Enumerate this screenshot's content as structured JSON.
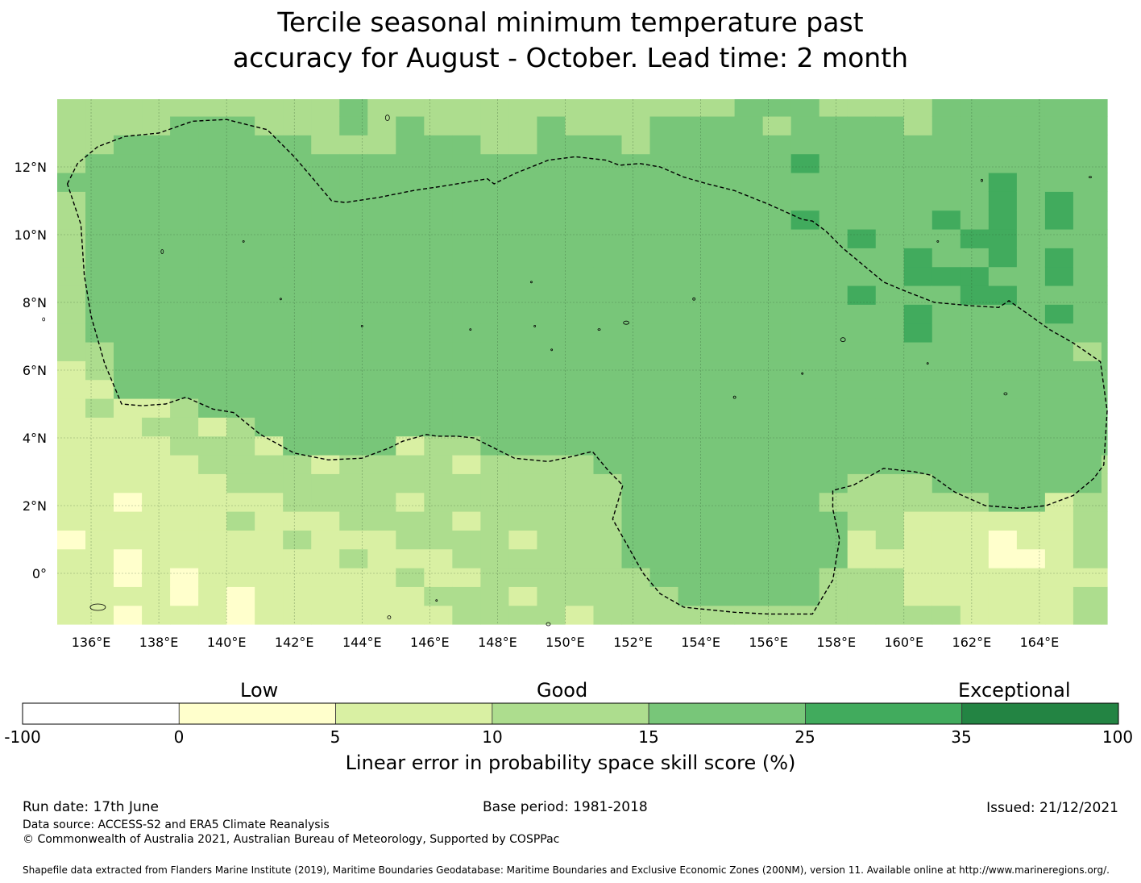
{
  "title": {
    "line1": "Tercile seasonal minimum temperature past",
    "line2": "accuracy for August - October. Lead time: 2 month"
  },
  "map": {
    "lon_range": [
      135,
      166
    ],
    "lat_range": [
      -1.5,
      14
    ],
    "x_ticks": [
      "136°E",
      "138°E",
      "140°E",
      "142°E",
      "144°E",
      "146°E",
      "148°E",
      "150°E",
      "152°E",
      "154°E",
      "156°E",
      "158°E",
      "160°E",
      "162°E",
      "164°E"
    ],
    "y_ticks": [
      "12°N",
      "10°N",
      "8°N",
      "6°N",
      "4°N",
      "2°N",
      "0°"
    ],
    "category_colors": [
      "#ffffcc",
      "#d9f0a3",
      "#addd8e",
      "#78c679",
      "#41ab5d",
      "#238443"
    ],
    "eez_outline_color": "#000000"
  },
  "colorbar": {
    "headings": {
      "low": "Low",
      "good": "Good",
      "exceptional": "Exceptional"
    },
    "ticks": [
      "-100",
      "0",
      "5",
      "10",
      "15",
      "25",
      "35",
      "100"
    ],
    "colors": [
      "#ffffff",
      "#ffffcc",
      "#d9f0a3",
      "#addd8e",
      "#78c679",
      "#41ab5d",
      "#238443"
    ],
    "label": "Linear error in probability space skill score (%)"
  },
  "footer": {
    "run_date": "Run date: 17th June",
    "base_period": "Base period: 1981-2018",
    "issued": "Issued: 21/12/2021",
    "data_source": "Data source: ACCESS-S2 and ERA5 Climate Reanalysis",
    "copyright": "© Commonwealth of Australia 2021, Australian Bureau of Meteorology, Supported by COSPPac",
    "shapefile": "Shapefile data extracted from Flanders Marine Institute (2019), Maritime Boundaries Geodatabase: Maritime Boundaries and Exclusive Economic Zones (200NM), version 11. Available online at http://www.marineregions.org/."
  }
}
